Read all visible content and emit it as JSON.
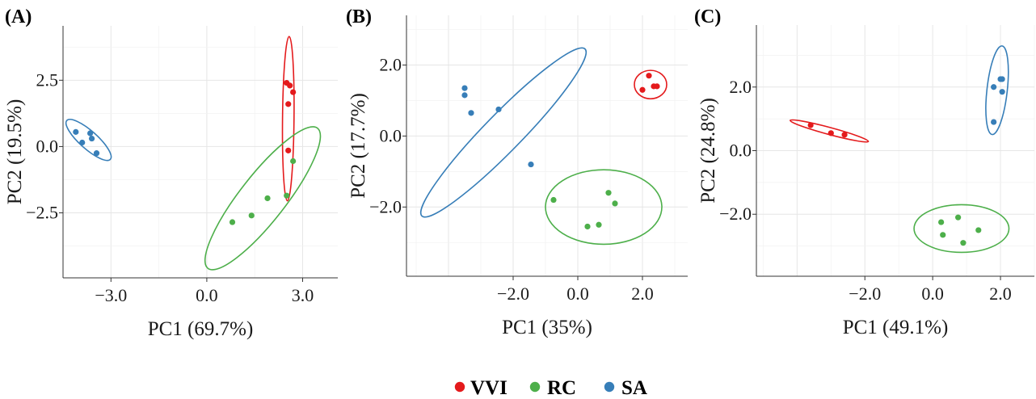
{
  "colors": {
    "VVI": "#e41a1c",
    "RC": "#4daf4a",
    "SA": "#377eb8"
  },
  "legend": [
    {
      "name": "VVI",
      "color": "#e41a1c"
    },
    {
      "name": "RC",
      "color": "#4daf4a"
    },
    {
      "name": "SA",
      "color": "#377eb8"
    }
  ],
  "chart_data": [
    {
      "type": "scatter",
      "panel_label": "(A)",
      "xlabel": "PC1 (69.7%)",
      "ylabel": "PC2 (19.5%)",
      "xlim": [
        -4.5,
        4.1
      ],
      "ylim": [
        -4.95,
        4.55
      ],
      "xticks": [
        -3.0,
        0.0,
        3.0
      ],
      "xtick_labels": [
        "−3.0",
        "0.0",
        "3.0"
      ],
      "yticks": [
        -2.5,
        0.0,
        2.5
      ],
      "ytick_labels": [
        "−2.5",
        "0.0",
        "2.5"
      ],
      "grid": true,
      "series": [
        {
          "name": "VVI",
          "x": [
            2.5,
            2.6,
            2.7,
            2.55,
            2.55
          ],
          "y": [
            2.4,
            2.3,
            2.05,
            1.6,
            -0.15
          ],
          "ellipse": {
            "cx": 2.55,
            "cy": 1.05,
            "rx": 3.1,
            "ry": 0.18,
            "angle": 89.5
          }
        },
        {
          "name": "RC",
          "x": [
            0.8,
            1.4,
            1.9,
            2.5,
            2.7
          ],
          "y": [
            -2.85,
            -2.6,
            -1.95,
            -1.85,
            -0.55
          ],
          "ellipse": {
            "cx": 1.75,
            "cy": -1.95,
            "rx": 3.15,
            "ry": 0.75,
            "angle": 57
          }
        },
        {
          "name": "SA",
          "x": [
            -4.1,
            -3.9,
            -3.65,
            -3.6,
            -3.45
          ],
          "y": [
            0.55,
            0.15,
            0.5,
            0.3,
            -0.25
          ],
          "ellipse": {
            "cx": -3.7,
            "cy": 0.25,
            "rx": 1.0,
            "ry": 0.3,
            "angle": -47
          }
        }
      ]
    },
    {
      "type": "scatter",
      "panel_label": "(B)",
      "xlabel": "PC1 (35%)",
      "ylabel": "PC2 (17.7%)",
      "xlim": [
        -5.3,
        3.4
      ],
      "ylim": [
        -3.95,
        3.4
      ],
      "xticks": [
        -2.0,
        0.0,
        2.0
      ],
      "xtick_labels": [
        "−2.0",
        "0.0",
        "2.0"
      ],
      "yticks": [
        -2.0,
        0.0,
        2.0
      ],
      "ytick_labels": [
        "−2.0",
        "0.0",
        "2.0"
      ],
      "grid": true,
      "series": [
        {
          "name": "VVI",
          "x": [
            2.0,
            2.2,
            2.35,
            2.45
          ],
          "y": [
            1.3,
            1.7,
            1.4,
            1.4
          ],
          "ellipse": {
            "cx": 2.25,
            "cy": 1.45,
            "rx": 0.5,
            "ry": 0.4,
            "angle": 0
          }
        },
        {
          "name": "RC",
          "x": [
            -0.75,
            0.3,
            0.65,
            0.95,
            1.15
          ],
          "y": [
            -1.8,
            -2.55,
            -2.5,
            -1.6,
            -1.9
          ],
          "ellipse": {
            "cx": 0.8,
            "cy": -2.0,
            "rx": 1.8,
            "ry": 1.05,
            "angle": 0
          }
        },
        {
          "name": "SA",
          "x": [
            -3.5,
            -3.5,
            -3.3,
            -2.45,
            -1.45
          ],
          "y": [
            1.35,
            1.15,
            0.65,
            0.75,
            -0.8
          ],
          "ellipse": {
            "cx": -2.3,
            "cy": 0.1,
            "rx": 3.45,
            "ry": 0.55,
            "angle": 43
          }
        }
      ]
    },
    {
      "type": "scatter",
      "panel_label": "(C)",
      "xlabel": "PC1 (49.1%)",
      "ylabel": "PC2 (24.8%)",
      "xlim": [
        -5.2,
        3.0
      ],
      "ylim": [
        -3.95,
        3.95
      ],
      "xticks": [
        -2.0,
        0.0,
        2.0
      ],
      "xtick_labels": [
        "−2.0",
        "0.0",
        "2.0"
      ],
      "yticks": [
        -2.0,
        0.0,
        2.0
      ],
      "ytick_labels": [
        "−2.0",
        "0.0",
        "2.0"
      ],
      "grid": true,
      "series": [
        {
          "name": "VVI",
          "x": [
            -3.6,
            -3.0,
            -2.6
          ],
          "y": [
            0.8,
            0.55,
            0.5
          ],
          "ellipse": {
            "cx": -3.05,
            "cy": 0.62,
            "rx": 1.2,
            "ry": 0.11,
            "angle": -16
          }
        },
        {
          "name": "RC",
          "x": [
            0.25,
            0.3,
            0.75,
            0.9,
            1.35
          ],
          "y": [
            -2.25,
            -2.65,
            -2.1,
            -2.9,
            -2.5
          ],
          "ellipse": {
            "cx": 0.85,
            "cy": -2.45,
            "rx": 1.4,
            "ry": 0.75,
            "angle": 0
          }
        },
        {
          "name": "SA",
          "x": [
            1.8,
            1.8,
            2.0,
            2.05,
            2.05
          ],
          "y": [
            0.9,
            2.0,
            2.25,
            2.25,
            1.85
          ],
          "ellipse": {
            "cx": 1.9,
            "cy": 1.9,
            "rx": 1.4,
            "ry": 0.3,
            "angle": 84
          }
        }
      ]
    }
  ]
}
